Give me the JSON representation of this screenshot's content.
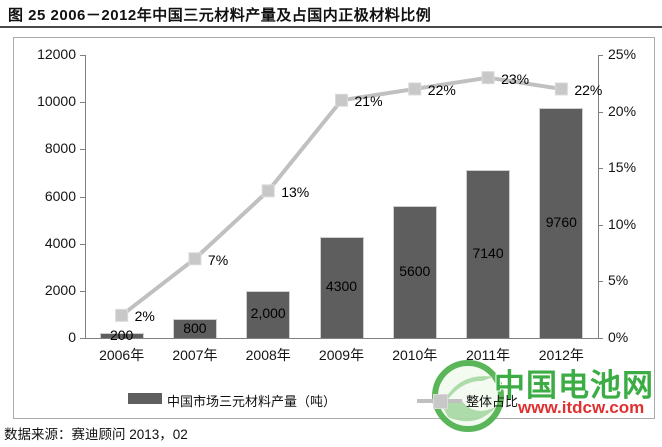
{
  "page": {
    "title": "图  25 2006－2012年中国三元材料产量及占国内正极材料比例",
    "source_note": "数据来源：赛迪顾问  2013，02"
  },
  "watermark": {
    "brand": "中国电池网",
    "url": "www.itdcw.com"
  },
  "chart_data": {
    "type": "bar",
    "combo_types": [
      "bar",
      "line"
    ],
    "title": "2006－2012年中国三元材料产量及占国内正极材料比例",
    "categories": [
      "2006年",
      "2007年",
      "2008年",
      "2009年",
      "2010年",
      "2011年",
      "2012年"
    ],
    "series": [
      {
        "name": "中国市场三元材料产量（吨）",
        "type": "bar",
        "axis": "left",
        "values": [
          200,
          800,
          2000,
          4300,
          5600,
          7140,
          9760
        ],
        "labels": [
          "200",
          "800",
          "2,000",
          "4300",
          "5600",
          "7140",
          "9760"
        ]
      },
      {
        "name": "整体占比",
        "type": "line",
        "axis": "right",
        "values": [
          2,
          7,
          13,
          21,
          22,
          23,
          22
        ],
        "labels": [
          "2%",
          "7%",
          "13%",
          "21%",
          "22%",
          "23%",
          "22%"
        ]
      }
    ],
    "left_axis": {
      "min": 0,
      "max": 12000,
      "ticks": [
        0,
        2000,
        4000,
        6000,
        8000,
        10000,
        12000
      ],
      "labels": [
        "0",
        "2000",
        "4000",
        "6000",
        "8000",
        "10000",
        "12000"
      ]
    },
    "right_axis": {
      "min": 0,
      "max": 25,
      "ticks": [
        0,
        5,
        10,
        15,
        20,
        25
      ],
      "labels": [
        "0%",
        "5%",
        "10%",
        "15%",
        "20%",
        "25%"
      ]
    },
    "legend_position": "bottom",
    "grid": false,
    "colors": {
      "bar": "#5e5e5e",
      "line": "#c0c0c0",
      "marker": "#c8c8c8",
      "marker_border": "#dadada",
      "axis": "#808080",
      "frame": "#ababab",
      "logo_green": "#3bad44",
      "logo_light_green": "#9fd59a",
      "logo_url_red": "#e03030"
    }
  }
}
